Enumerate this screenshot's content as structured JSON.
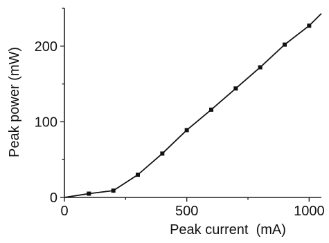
{
  "chart_data": {
    "type": "line",
    "title": "",
    "xlabel": "Peak current  (mA)",
    "ylabel": "Peak power (mW)",
    "xlim": [
      0,
      1050
    ],
    "ylim": [
      0,
      250
    ],
    "x_ticks": [
      0,
      500,
      1000
    ],
    "y_ticks": [
      0,
      100,
      200
    ],
    "grid": false,
    "series": [
      {
        "line_x": [
          0,
          100,
          200,
          300,
          400,
          500,
          600,
          700,
          800,
          900,
          1000,
          1050
        ],
        "line_y": [
          0,
          5,
          9,
          30,
          58,
          89,
          116,
          144,
          172,
          202,
          227,
          243
        ],
        "marker_x": [
          100,
          200,
          300,
          400,
          500,
          600,
          700,
          800,
          900,
          1000
        ],
        "marker_y": [
          5,
          9,
          30,
          58,
          89,
          116,
          144,
          172,
          202,
          227
        ],
        "color": "#111111"
      }
    ]
  }
}
